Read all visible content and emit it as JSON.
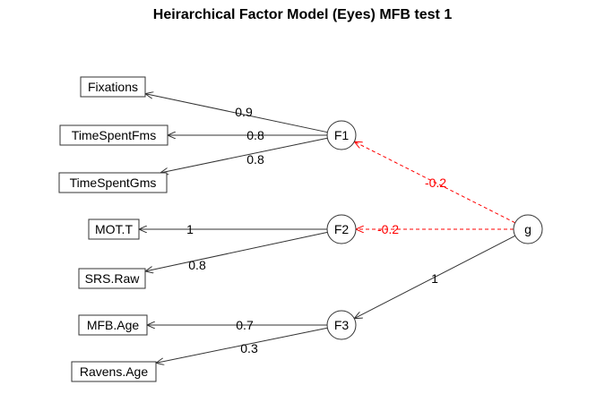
{
  "title": "Heirarchical Factor Model (Eyes) MFB test 1",
  "colors": {
    "line": "#333333",
    "negative": "#ff0000",
    "text": "#000000"
  },
  "manifest_variables": [
    {
      "id": "fixations",
      "label": "Fixations"
    },
    {
      "id": "timespentfms",
      "label": "TimeSpentFms"
    },
    {
      "id": "timespentgms",
      "label": "TimeSpentGms"
    },
    {
      "id": "mot",
      "label": "MOT.T"
    },
    {
      "id": "srsraw",
      "label": "SRS.Raw"
    },
    {
      "id": "mfbage",
      "label": "MFB.Age"
    },
    {
      "id": "ravensage",
      "label": "Ravens.Age"
    }
  ],
  "factors": [
    {
      "id": "f1",
      "label": "F1"
    },
    {
      "id": "f2",
      "label": "F2"
    },
    {
      "id": "f3",
      "label": "F3"
    },
    {
      "id": "g",
      "label": "g"
    }
  ],
  "loadings": [
    {
      "from": "f1",
      "to": "fixations",
      "label": "0.9",
      "negative": false
    },
    {
      "from": "f1",
      "to": "timespentfms",
      "label": "0.8",
      "negative": false
    },
    {
      "from": "f1",
      "to": "timespentgms",
      "label": "0.8",
      "negative": false
    },
    {
      "from": "f2",
      "to": "mot",
      "label": "1",
      "negative": false
    },
    {
      "from": "f2",
      "to": "srsraw",
      "label": "0.8",
      "negative": false
    },
    {
      "from": "f3",
      "to": "mfbage",
      "label": "0.7",
      "negative": false
    },
    {
      "from": "f3",
      "to": "ravensage",
      "label": "0.3",
      "negative": false
    },
    {
      "from": "g",
      "to": "f1",
      "label": "-0.2",
      "negative": true
    },
    {
      "from": "g",
      "to": "f2",
      "label": "-0.2",
      "negative": true
    },
    {
      "from": "g",
      "to": "f3",
      "label": "1",
      "negative": false
    }
  ]
}
